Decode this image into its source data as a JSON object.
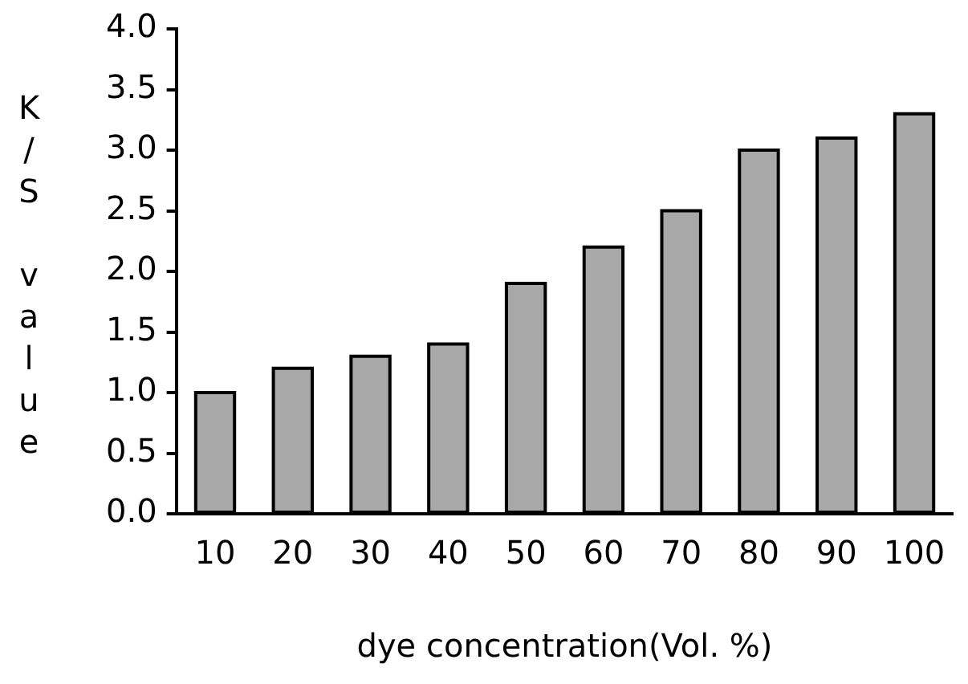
{
  "chart_data": {
    "type": "bar",
    "xlabel": "dye concentration(Vol. %)",
    "ylabel": "K/S value",
    "categories": [
      "10",
      "20",
      "30",
      "40",
      "50",
      "60",
      "70",
      "80",
      "90",
      "100"
    ],
    "values": [
      1.0,
      1.2,
      1.3,
      1.4,
      1.9,
      2.2,
      2.5,
      3.0,
      3.1,
      3.3
    ],
    "color": "#a8a8a8",
    "ylim": [
      0,
      4
    ],
    "yticks": [
      {
        "value": 0,
        "label": "0.0"
      },
      {
        "value": 0.5,
        "label": "0.5"
      },
      {
        "value": 1,
        "label": "1.0"
      },
      {
        "value": 1.5,
        "label": "1.5"
      },
      {
        "value": 2,
        "label": "2.0"
      },
      {
        "value": 2.5,
        "label": "2.5"
      },
      {
        "value": 3,
        "label": "3.0"
      },
      {
        "value": 3.5,
        "label": "3.5"
      },
      {
        "value": 4,
        "label": "4.0"
      }
    ],
    "grid": false,
    "legend": false
  }
}
